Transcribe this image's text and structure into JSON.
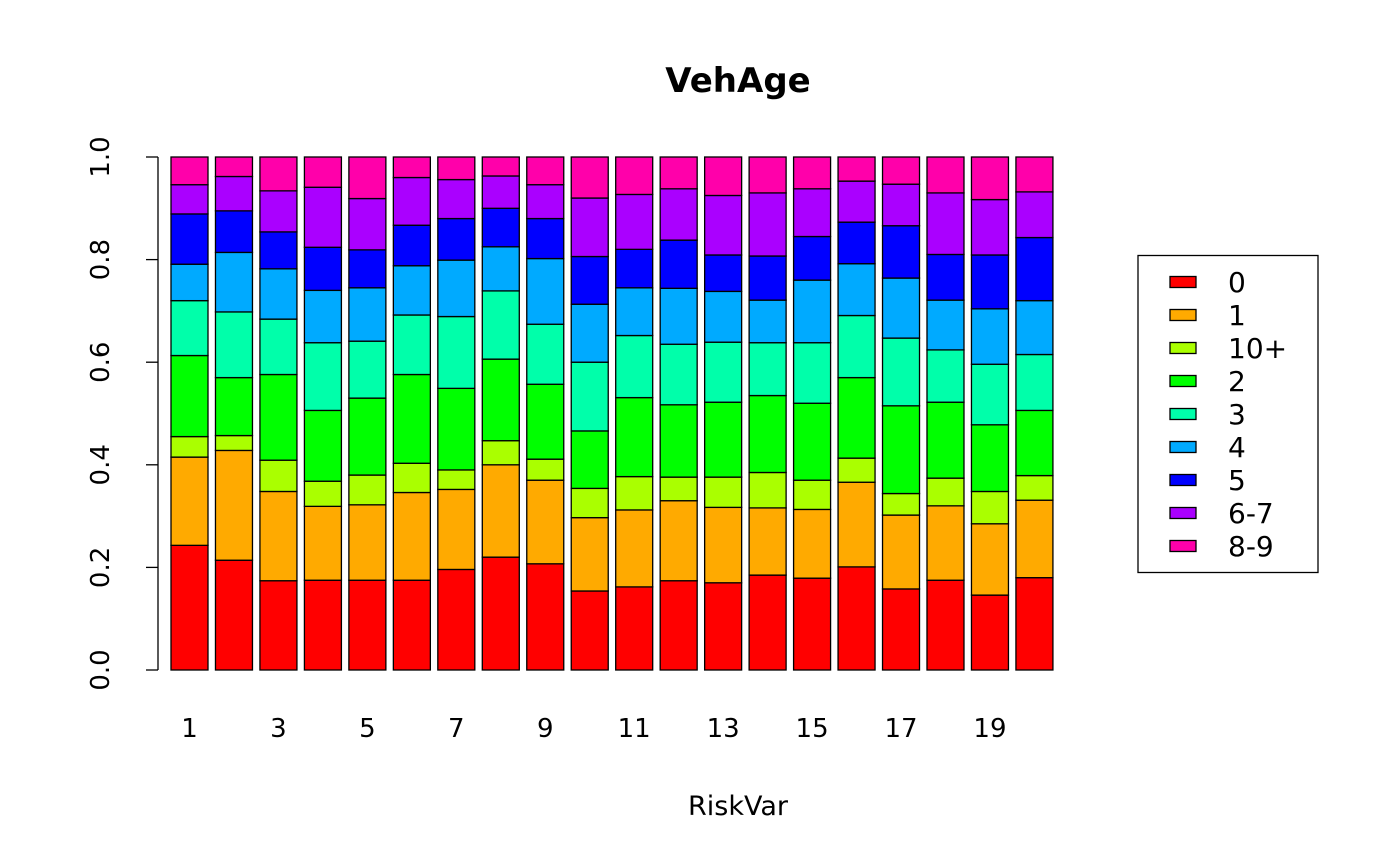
{
  "chart_data": {
    "type": "bar",
    "stacked": true,
    "title": "VehAge",
    "xlabel": "RiskVar",
    "ylabel": "",
    "ylim": [
      0,
      1
    ],
    "y_ticks": [
      "0.0",
      "0.2",
      "0.4",
      "0.6",
      "0.8",
      "1.0"
    ],
    "x_tick_labels": [
      "1",
      "3",
      "5",
      "7",
      "9",
      "11",
      "13",
      "15",
      "17",
      "19"
    ],
    "categories": [
      1,
      2,
      3,
      4,
      5,
      6,
      7,
      8,
      9,
      10,
      11,
      12,
      13,
      14,
      15,
      16,
      17,
      18,
      19,
      20
    ],
    "grid": false,
    "legend_placement": "right",
    "series": [
      {
        "name": "0",
        "color": "#FF0000",
        "values": [
          0.243,
          0.214,
          0.174,
          0.175,
          0.175,
          0.175,
          0.196,
          0.22,
          0.207,
          0.154,
          0.162,
          0.174,
          0.17,
          0.185,
          0.179,
          0.201,
          0.158,
          0.175,
          0.146,
          0.18
        ]
      },
      {
        "name": "1",
        "color": "#FFAA00",
        "values": [
          0.172,
          0.214,
          0.174,
          0.144,
          0.147,
          0.171,
          0.156,
          0.18,
          0.163,
          0.143,
          0.15,
          0.156,
          0.147,
          0.131,
          0.134,
          0.165,
          0.144,
          0.145,
          0.139,
          0.151
        ]
      },
      {
        "name": "10+",
        "color": "#AAFF00",
        "values": [
          0.04,
          0.029,
          0.061,
          0.049,
          0.058,
          0.057,
          0.038,
          0.047,
          0.041,
          0.057,
          0.065,
          0.046,
          0.059,
          0.069,
          0.057,
          0.047,
          0.042,
          0.054,
          0.063,
          0.048
        ]
      },
      {
        "name": "2",
        "color": "#00FF00",
        "values": [
          0.158,
          0.113,
          0.167,
          0.138,
          0.15,
          0.173,
          0.159,
          0.159,
          0.146,
          0.112,
          0.154,
          0.141,
          0.146,
          0.15,
          0.15,
          0.157,
          0.171,
          0.148,
          0.13,
          0.127
        ]
      },
      {
        "name": "3",
        "color": "#00FFAA",
        "values": [
          0.107,
          0.128,
          0.108,
          0.132,
          0.111,
          0.116,
          0.14,
          0.133,
          0.117,
          0.134,
          0.121,
          0.118,
          0.117,
          0.103,
          0.118,
          0.121,
          0.132,
          0.102,
          0.118,
          0.109
        ]
      },
      {
        "name": "4",
        "color": "#00AAFF",
        "values": [
          0.071,
          0.116,
          0.098,
          0.102,
          0.104,
          0.096,
          0.11,
          0.086,
          0.128,
          0.113,
          0.093,
          0.109,
          0.099,
          0.083,
          0.122,
          0.101,
          0.117,
          0.097,
          0.108,
          0.105
        ]
      },
      {
        "name": "5",
        "color": "#0000FF",
        "values": [
          0.098,
          0.081,
          0.072,
          0.084,
          0.074,
          0.079,
          0.081,
          0.075,
          0.078,
          0.093,
          0.075,
          0.094,
          0.071,
          0.086,
          0.085,
          0.081,
          0.102,
          0.089,
          0.105,
          0.123
        ]
      },
      {
        "name": "6-7",
        "color": "#AA00FF",
        "values": [
          0.057,
          0.067,
          0.08,
          0.117,
          0.1,
          0.093,
          0.076,
          0.063,
          0.066,
          0.114,
          0.107,
          0.1,
          0.116,
          0.123,
          0.093,
          0.08,
          0.081,
          0.12,
          0.108,
          0.089
        ]
      },
      {
        "name": "8-9",
        "color": "#FF00AA",
        "values": [
          0.054,
          0.038,
          0.066,
          0.059,
          0.081,
          0.04,
          0.044,
          0.037,
          0.054,
          0.08,
          0.073,
          0.062,
          0.075,
          0.07,
          0.062,
          0.047,
          0.053,
          0.07,
          0.083,
          0.068
        ]
      }
    ]
  }
}
